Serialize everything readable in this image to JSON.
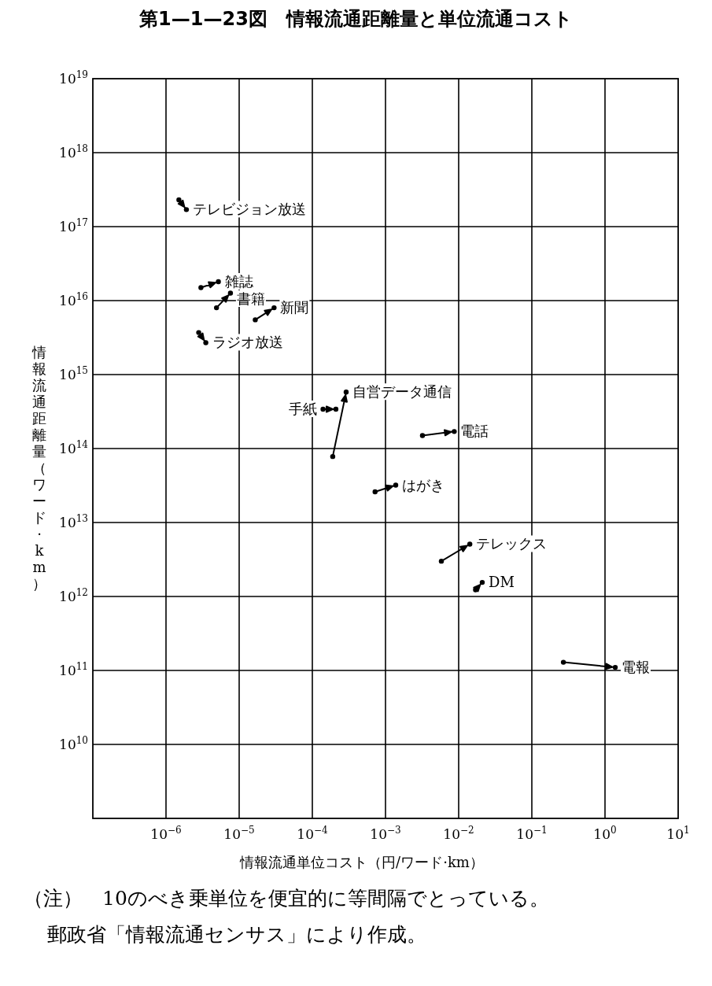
{
  "chart_data": {
    "type": "line",
    "title": "第1—1—23図　情報流通距離量と単位流通コスト",
    "xlabel": "情報流通単位コスト（円/ワード·km）",
    "ylabel": "情報流通距離量（ワード·km）",
    "annotations": [
      "（注）　10のべき乗単位を便宜的に等間隔でとっている。",
      "郵政省「情報流通センサス」により作成。"
    ],
    "log": "xy",
    "grid": true,
    "legend": "right",
    "marker": "circle",
    "line_style": "solid",
    "xlim": [
      1e-07,
      10
    ],
    "ylim": [
      1000000000.0,
      1e+19
    ],
    "xticks": [
      {
        "value": 1e-06,
        "label": "10$^{−6}$"
      },
      {
        "value": 1e-05,
        "label": "10$^{−5}$"
      },
      {
        "value": 0.0001,
        "label": "10$^{−4}$"
      },
      {
        "value": 0.001,
        "label": "10$^{−3}$"
      },
      {
        "value": 0.01,
        "label": "10$^{−2}$"
      },
      {
        "value": 0.1,
        "label": "10$^{−1}$"
      },
      {
        "value": 1,
        "label": "10$^{0}$"
      },
      {
        "value": 10,
        "label": "10$^{1}$"
      }
    ],
    "yticks": [
      {
        "value": 10000000000.0,
        "label": "10$^{10}$"
      },
      {
        "value": 100000000000.0,
        "label": "10$^{11}$"
      },
      {
        "value": 1000000000000.0,
        "label": "10$^{12}$"
      },
      {
        "value": 10000000000000.0,
        "label": "10$^{13}$"
      },
      {
        "value": 100000000000000.0,
        "label": "10$^{14}$"
      },
      {
        "value": 1000000000000000.0,
        "label": "10$^{15}$"
      },
      {
        "value": 1e+16,
        "label": "10$^{16}$"
      },
      {
        "value": 1e+17,
        "label": "10$^{17}$"
      },
      {
        "value": 1e+18,
        "label": "10$^{18}$"
      },
      {
        "value": 1e+19,
        "label": "10$^{19}$"
      }
    ],
    "series": [
      {
        "name": "テレビジョン放送",
        "color": "#000000",
        "x": [
          1.5e-06,
          1.9e-06
        ],
        "values": [
          2.3e+17,
          1.7e+17
        ]
      },
      {
        "name": "雑誌",
        "color": "#000000",
        "x": [
          3e-06,
          5.2e-06
        ],
        "values": [
          1.5e+16,
          1.8e+16
        ]
      },
      {
        "name": "書籍",
        "color": "#000000",
        "x": [
          4.9e-06,
          7.6e-06
        ],
        "values": [
          8000000000000000.0,
          1.26e+16
        ]
      },
      {
        "name": "新聞",
        "color": "#000000",
        "x": [
          1.66e-05,
          3e-05
        ],
        "values": [
          5500000000000000.0,
          8000000000000000.0
        ]
      },
      {
        "name": "ラジオ放送",
        "color": "#000000",
        "x": [
          2.8e-06,
          3.5e-06
        ],
        "values": [
          3700000000000000.0,
          2700000000000000.0
        ]
      },
      {
        "name": "手紙",
        "color": "#000000",
        "x": [
          0.00014,
          0.00021
        ],
        "values": [
          340000000000000.0,
          340000000000000.0
        ]
      },
      {
        "name": "自営データ通信",
        "color": "#000000",
        "x": [
          0.00019,
          0.00029
        ],
        "values": [
          78000000000000.0,
          580000000000000.0
        ]
      },
      {
        "name": "電話",
        "color": "#000000",
        "x": [
          0.0032,
          0.0087
        ],
        "values": [
          150000000000000.0,
          170000000000000.0
        ]
      },
      {
        "name": "はがき",
        "color": "#000000",
        "x": [
          0.00072,
          0.00138
        ],
        "values": [
          26000000000000.0,
          32000000000000.0
        ]
      },
      {
        "name": "テレックス",
        "color": "#000000",
        "x": [
          0.0058,
          0.0142
        ],
        "values": [
          3000000000000.0,
          5100000000000.0
        ]
      },
      {
        "name": "DM",
        "color": "#000000",
        "x": [
          0.017,
          0.021
        ],
        "values": [
          1230000000000.0,
          1550000000000.0
        ]
      },
      {
        "name": "電報",
        "color": "#000000",
        "x": [
          0.27,
          1.38
        ],
        "values": [
          129000000000.0,
          110000000000.0
        ]
      }
    ]
  }
}
